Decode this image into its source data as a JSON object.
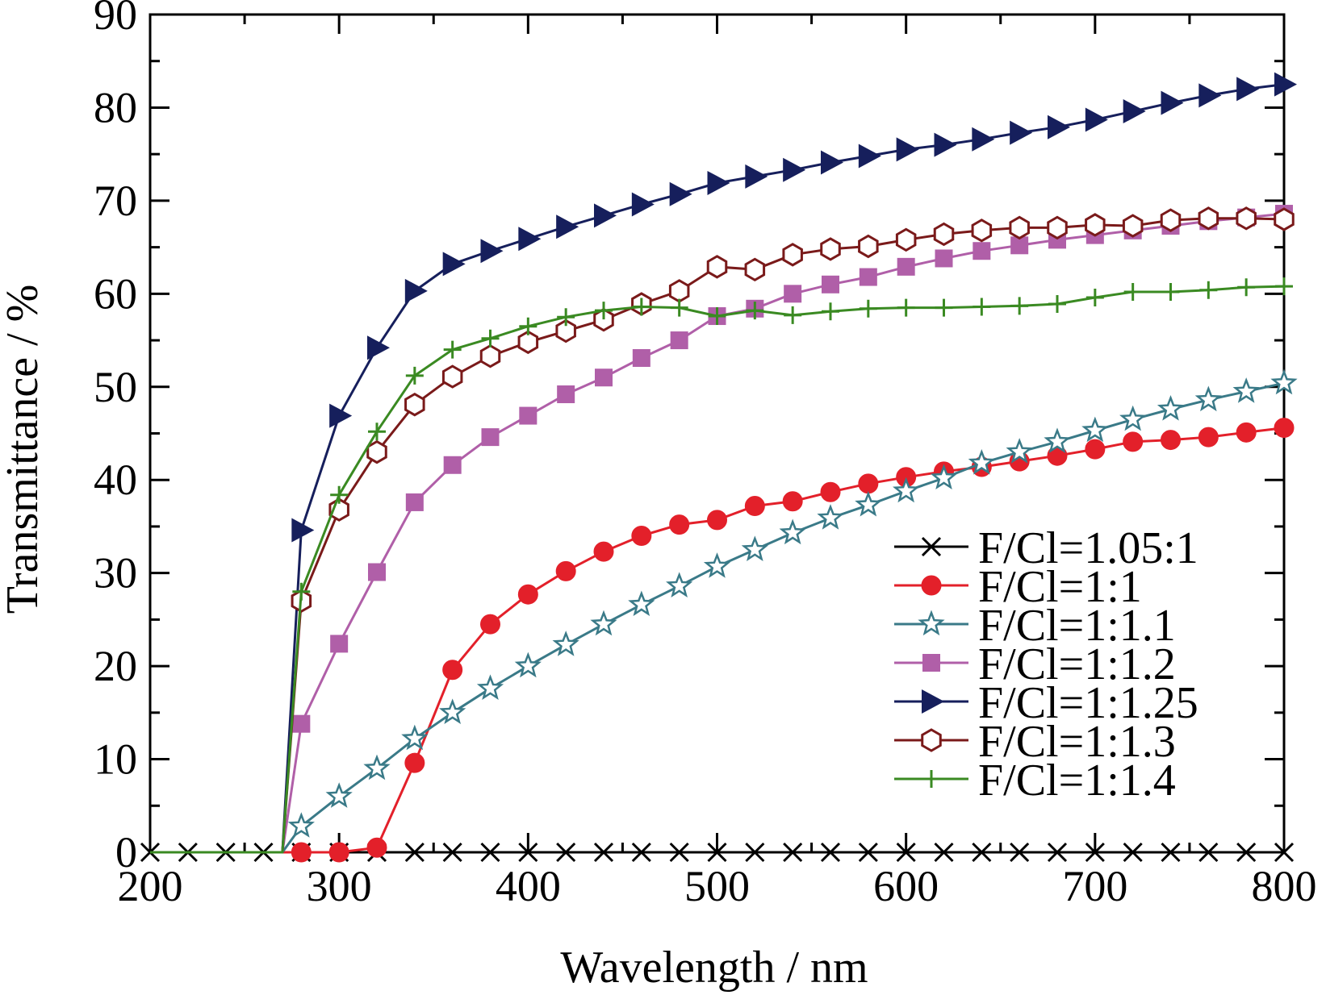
{
  "chart_data": {
    "type": "line",
    "title": "",
    "xlabel": "Wavelength / nm",
    "ylabel": "Transmittance / %",
    "xlim": [
      200,
      800
    ],
    "ylim": [
      0,
      90
    ],
    "x_ticks": [
      "200",
      "300",
      "400",
      "500",
      "600",
      "700",
      "800"
    ],
    "y_ticks": [
      "0",
      "10",
      "20",
      "30",
      "40",
      "50",
      "60",
      "70",
      "80",
      "90"
    ],
    "grid": false,
    "legend_position": "bottom-right",
    "series": [
      {
        "name": "F/Cl=1.05:1",
        "color": "#000000",
        "marker": "x",
        "x": [
          200,
          220,
          240,
          260,
          280,
          300,
          320,
          340,
          360,
          380,
          400,
          420,
          440,
          460,
          480,
          500,
          520,
          540,
          560,
          580,
          600,
          620,
          640,
          660,
          680,
          700,
          720,
          740,
          760,
          780,
          800
        ],
        "y": [
          0,
          0,
          0,
          0,
          0,
          0,
          0,
          0,
          0,
          0,
          0,
          0,
          0,
          0,
          0,
          0,
          0,
          0,
          0,
          0,
          0,
          0,
          0,
          0,
          0,
          0,
          0,
          0,
          0,
          0,
          0
        ]
      },
      {
        "name": "F/Cl=1:1",
        "color": "#e3202a",
        "marker": "circle",
        "x": [
          280,
          300,
          320,
          340,
          360,
          380,
          400,
          420,
          440,
          460,
          480,
          500,
          520,
          540,
          560,
          580,
          600,
          620,
          640,
          660,
          680,
          700,
          720,
          740,
          760,
          780,
          800
        ],
        "y": [
          0,
          0,
          0.5,
          9.6,
          19.6,
          24.5,
          27.7,
          30.2,
          32.3,
          34.0,
          35.2,
          35.7,
          37.2,
          37.7,
          38.7,
          39.6,
          40.3,
          40.9,
          41.4,
          42.0,
          42.6,
          43.3,
          44.1,
          44.3,
          44.6,
          45.1,
          45.6
        ]
      },
      {
        "name": "F/Cl=1:1.1",
        "color": "#3a7a88",
        "marker": "star",
        "x": [
          280,
          300,
          320,
          340,
          360,
          380,
          400,
          420,
          440,
          460,
          480,
          500,
          520,
          540,
          560,
          580,
          600,
          620,
          640,
          660,
          680,
          700,
          720,
          740,
          760,
          780,
          800
        ],
        "y": [
          2.8,
          6.0,
          9.0,
          12.2,
          15.0,
          17.6,
          20.0,
          22.3,
          24.5,
          26.6,
          28.6,
          30.7,
          32.5,
          34.3,
          35.9,
          37.3,
          38.8,
          40.2,
          41.8,
          43.0,
          44.1,
          45.3,
          46.5,
          47.6,
          48.6,
          49.5,
          50.4
        ]
      },
      {
        "name": "F/Cl=1:1.2",
        "color": "#b05fa8",
        "marker": "square",
        "x": [
          280,
          300,
          320,
          340,
          360,
          380,
          400,
          420,
          440,
          460,
          480,
          500,
          520,
          540,
          560,
          580,
          600,
          620,
          640,
          660,
          680,
          700,
          720,
          740,
          760,
          780,
          800
        ],
        "y": [
          13.8,
          22.4,
          30.1,
          37.6,
          41.6,
          44.6,
          46.9,
          49.2,
          51.0,
          53.1,
          55.0,
          57.6,
          58.4,
          60.0,
          61.0,
          61.8,
          62.9,
          63.8,
          64.6,
          65.2,
          65.8,
          66.3,
          66.8,
          67.3,
          67.8,
          68.2,
          68.6
        ]
      },
      {
        "name": "F/Cl=1:1.25",
        "color": "#161f5c",
        "marker": "triangle-right",
        "x": [
          280,
          300,
          320,
          340,
          360,
          380,
          400,
          420,
          440,
          460,
          480,
          500,
          520,
          540,
          560,
          580,
          600,
          620,
          640,
          660,
          680,
          700,
          720,
          740,
          760,
          780,
          800
        ],
        "y": [
          34.6,
          46.9,
          54.2,
          60.3,
          63.2,
          64.6,
          65.9,
          67.2,
          68.4,
          69.6,
          70.7,
          71.9,
          72.6,
          73.3,
          74.1,
          74.8,
          75.5,
          76.0,
          76.6,
          77.3,
          77.9,
          78.7,
          79.6,
          80.5,
          81.3,
          82.0,
          82.5
        ]
      },
      {
        "name": "F/Cl=1:1.3",
        "color": "#7a1a1a",
        "marker": "hexagon",
        "x": [
          280,
          300,
          320,
          340,
          360,
          380,
          400,
          420,
          440,
          460,
          480,
          500,
          520,
          540,
          560,
          580,
          600,
          620,
          640,
          660,
          680,
          700,
          720,
          740,
          760,
          780,
          800
        ],
        "y": [
          27.0,
          36.8,
          43.0,
          48.1,
          51.1,
          53.3,
          54.8,
          56.0,
          57.2,
          58.9,
          60.3,
          62.9,
          62.6,
          64.2,
          64.8,
          65.1,
          65.8,
          66.4,
          66.8,
          67.1,
          67.1,
          67.4,
          67.3,
          67.9,
          68.1,
          68.1,
          68.0
        ]
      },
      {
        "name": "F/Cl=1:1.4",
        "color": "#3a8a22",
        "marker": "plus",
        "x": [
          280,
          300,
          320,
          340,
          360,
          380,
          400,
          420,
          440,
          460,
          480,
          500,
          520,
          540,
          560,
          580,
          600,
          620,
          640,
          660,
          680,
          700,
          720,
          740,
          760,
          780,
          800
        ],
        "y": [
          28.0,
          38.4,
          45.2,
          51.2,
          54.0,
          55.2,
          56.5,
          57.5,
          58.2,
          58.6,
          58.5,
          57.6,
          58.2,
          57.7,
          58.1,
          58.4,
          58.5,
          58.5,
          58.6,
          58.7,
          58.9,
          59.6,
          60.2,
          60.2,
          60.4,
          60.7,
          60.8
        ]
      }
    ]
  }
}
